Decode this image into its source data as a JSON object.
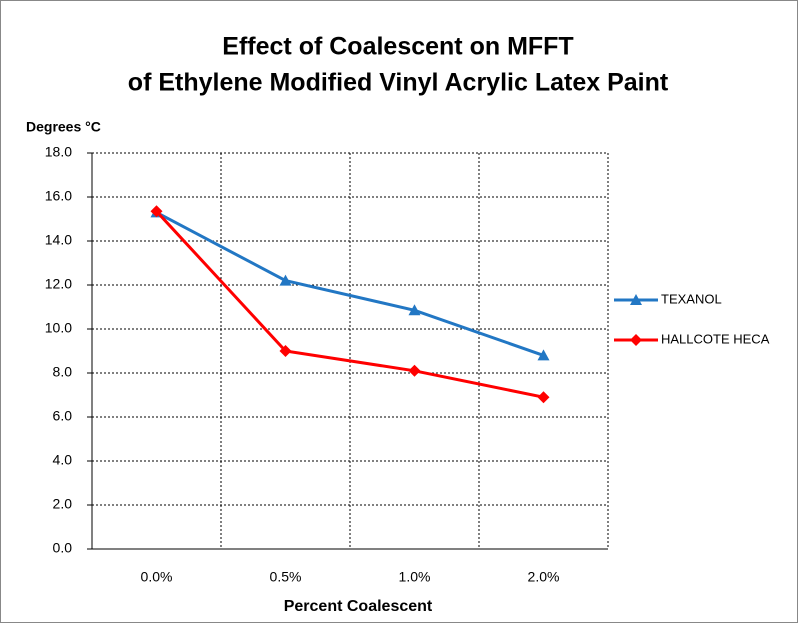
{
  "chart_data": {
    "type": "line",
    "title": [
      "Effect of Coalescent on MFFT",
      "of Ethylene Modified Vinyl Acrylic Latex Paint"
    ],
    "y_label": "Degrees °C",
    "x_label": "Percent Coalescent",
    "categories": [
      "0.0%",
      "0.5%",
      "1.0%",
      "2.0%"
    ],
    "series": [
      {
        "name": "TEXANOL",
        "color": "#2277c4",
        "marker": "triangle",
        "values": [
          15.3,
          12.2,
          10.85,
          8.8
        ]
      },
      {
        "name": "HALLCOTE HECA",
        "color": "#ff0000",
        "marker": "diamond",
        "values": [
          15.35,
          9.0,
          8.1,
          6.9
        ]
      }
    ],
    "ylim": [
      0,
      18
    ],
    "yticks": [
      {
        "value": 0,
        "label": "0.0"
      },
      {
        "value": 2,
        "label": "2.0"
      },
      {
        "value": 4,
        "label": "4.0"
      },
      {
        "value": 6,
        "label": "6.0"
      },
      {
        "value": 8,
        "label": "8.0"
      },
      {
        "value": 10,
        "label": "10.0"
      },
      {
        "value": 12,
        "label": "12.0"
      },
      {
        "value": 14,
        "label": "14.0"
      },
      {
        "value": 16,
        "label": "16.0"
      },
      {
        "value": 18,
        "label": "18.0"
      }
    ],
    "grid": true,
    "legend": "right"
  }
}
